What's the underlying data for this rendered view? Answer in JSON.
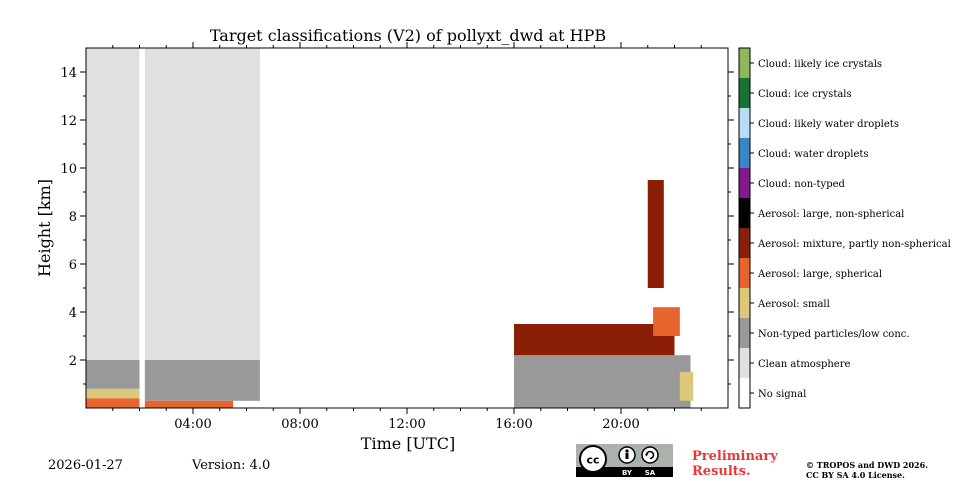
{
  "chart_data": {
    "type": "heatmap",
    "title": "Target classifications (V2) of pollyxt_dwd at HPB",
    "xlabel": "Time [UTC]",
    "ylabel": "Height [km]",
    "xlim": [
      0,
      24
    ],
    "ylim": [
      0,
      15
    ],
    "x_tick_values": [
      4,
      8,
      12,
      16,
      20
    ],
    "x_tick_labels": [
      "04:00",
      "08:00",
      "12:00",
      "16:00",
      "20:00"
    ],
    "y_tick_values": [
      2,
      4,
      6,
      8,
      10,
      12,
      14
    ],
    "y_tick_labels": [
      "2",
      "4",
      "6",
      "8",
      "10",
      "12",
      "14"
    ],
    "classes": [
      {
        "name": "No signal",
        "color": "#ffffff"
      },
      {
        "name": "Clean atmosphere",
        "color": "#e0e0e0"
      },
      {
        "name": "Non-typed particles/low conc.",
        "color": "#999999"
      },
      {
        "name": "Aerosol: small",
        "color": "#dcc87a"
      },
      {
        "name": "Aerosol: large, spherical",
        "color": "#e8632e"
      },
      {
        "name": "Aerosol: mixture, partly non-spherical",
        "color": "#8b1f05"
      },
      {
        "name": "Aerosol: large, non-spherical",
        "color": "#000000"
      },
      {
        "name": "Cloud: non-typed",
        "color": "#83198f"
      },
      {
        "name": "Cloud: water droplets",
        "color": "#3a85c6"
      },
      {
        "name": "Cloud: likely water droplets",
        "color": "#b9dcf5"
      },
      {
        "name": "Cloud: ice crystals",
        "color": "#177233"
      },
      {
        "name": "Cloud: likely ice crystals",
        "color": "#8db85a"
      }
    ],
    "regions": [
      {
        "class": "Clean atmosphere",
        "x": [
          0,
          2.0
        ],
        "y": [
          2.0,
          15.0
        ]
      },
      {
        "class": "Clean atmosphere",
        "x": [
          2.2,
          6.5
        ],
        "y": [
          2.0,
          15.0
        ]
      },
      {
        "class": "Non-typed particles/low conc.",
        "x": [
          0,
          2.0
        ],
        "y": [
          0.8,
          2.0
        ]
      },
      {
        "class": "Non-typed particles/low conc.",
        "x": [
          2.2,
          6.5
        ],
        "y": [
          0.3,
          2.0
        ]
      },
      {
        "class": "Aerosol: small",
        "x": [
          0,
          2.0
        ],
        "y": [
          0.4,
          0.8
        ]
      },
      {
        "class": "Aerosol: large, spherical",
        "x": [
          0,
          2.0
        ],
        "y": [
          0.0,
          0.4
        ]
      },
      {
        "class": "Aerosol: large, spherical",
        "x": [
          2.2,
          5.5
        ],
        "y": [
          0.0,
          0.3
        ]
      },
      {
        "class": "Non-typed particles/low conc.",
        "x": [
          16.0,
          22.6
        ],
        "y": [
          0.0,
          2.2
        ]
      },
      {
        "class": "Aerosol: mixture, partly non-spherical",
        "x": [
          16.0,
          22.0
        ],
        "y": [
          2.2,
          3.5
        ]
      },
      {
        "class": "Aerosol: large, spherical",
        "x": [
          21.2,
          22.2
        ],
        "y": [
          3.0,
          4.2
        ]
      },
      {
        "class": "Aerosol: mixture, partly non-spherical",
        "x": [
          21.0,
          21.6
        ],
        "y": [
          5.0,
          9.5
        ]
      },
      {
        "class": "Aerosol: small",
        "x": [
          22.2,
          22.7
        ],
        "y": [
          0.3,
          1.5
        ]
      }
    ],
    "colorbar": "right"
  },
  "footer": {
    "date": "2026-01-27",
    "version": "Version: 4.0",
    "preliminary": [
      "Preliminary",
      "Results."
    ],
    "copyright": [
      "© TROPOS and DWD 2026.",
      "CC BY SA 4.0 License."
    ],
    "license_badge": "cc-by-sa-icon"
  }
}
